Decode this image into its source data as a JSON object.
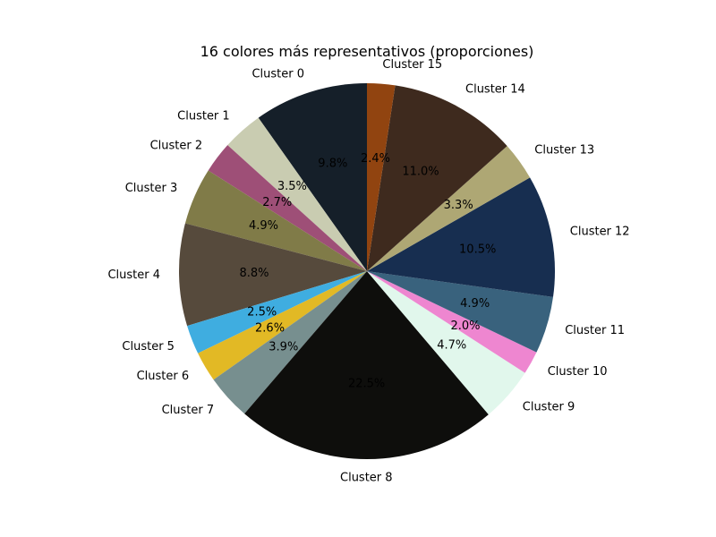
{
  "chart_data": {
    "type": "pie",
    "title": "16 colores más representativos (proporciones)",
    "start_angle_deg": 90,
    "direction": "counterclockwise",
    "slices": [
      {
        "label": "Cluster 0",
        "value": 9.8,
        "pct_label": "9.8%",
        "color": "#151f29"
      },
      {
        "label": "Cluster 1",
        "value": 3.5,
        "pct_label": "3.5%",
        "color": "#c9ccb1"
      },
      {
        "label": "Cluster 2",
        "value": 2.7,
        "pct_label": "2.7%",
        "color": "#9e4f77"
      },
      {
        "label": "Cluster 3",
        "value": 4.9,
        "pct_label": "4.9%",
        "color": "#807b48"
      },
      {
        "label": "Cluster 4",
        "value": 8.8,
        "pct_label": "8.8%",
        "color": "#564a3c"
      },
      {
        "label": "Cluster 5",
        "value": 2.5,
        "pct_label": "2.5%",
        "color": "#3fade0"
      },
      {
        "label": "Cluster 6",
        "value": 2.6,
        "pct_label": "2.6%",
        "color": "#e2b925"
      },
      {
        "label": "Cluster 7",
        "value": 3.9,
        "pct_label": "3.9%",
        "color": "#778f8f"
      },
      {
        "label": "Cluster 8",
        "value": 22.5,
        "pct_label": "22.5%",
        "color": "#0e0e0c"
      },
      {
        "label": "Cluster 9",
        "value": 4.7,
        "pct_label": "4.7%",
        "color": "#e1f7ec"
      },
      {
        "label": "Cluster 10",
        "value": 2.0,
        "pct_label": "2.0%",
        "color": "#ee86d0"
      },
      {
        "label": "Cluster 11",
        "value": 4.9,
        "pct_label": "4.9%",
        "color": "#39627d"
      },
      {
        "label": "Cluster 12",
        "value": 10.5,
        "pct_label": "10.5%",
        "color": "#172e50"
      },
      {
        "label": "Cluster 13",
        "value": 3.3,
        "pct_label": "3.3%",
        "color": "#aea774"
      },
      {
        "label": "Cluster 14",
        "value": 11.0,
        "pct_label": "11.0%",
        "color": "#3e2a1e"
      },
      {
        "label": "Cluster 15",
        "value": 2.4,
        "pct_label": "2.4%",
        "color": "#914410"
      }
    ]
  }
}
